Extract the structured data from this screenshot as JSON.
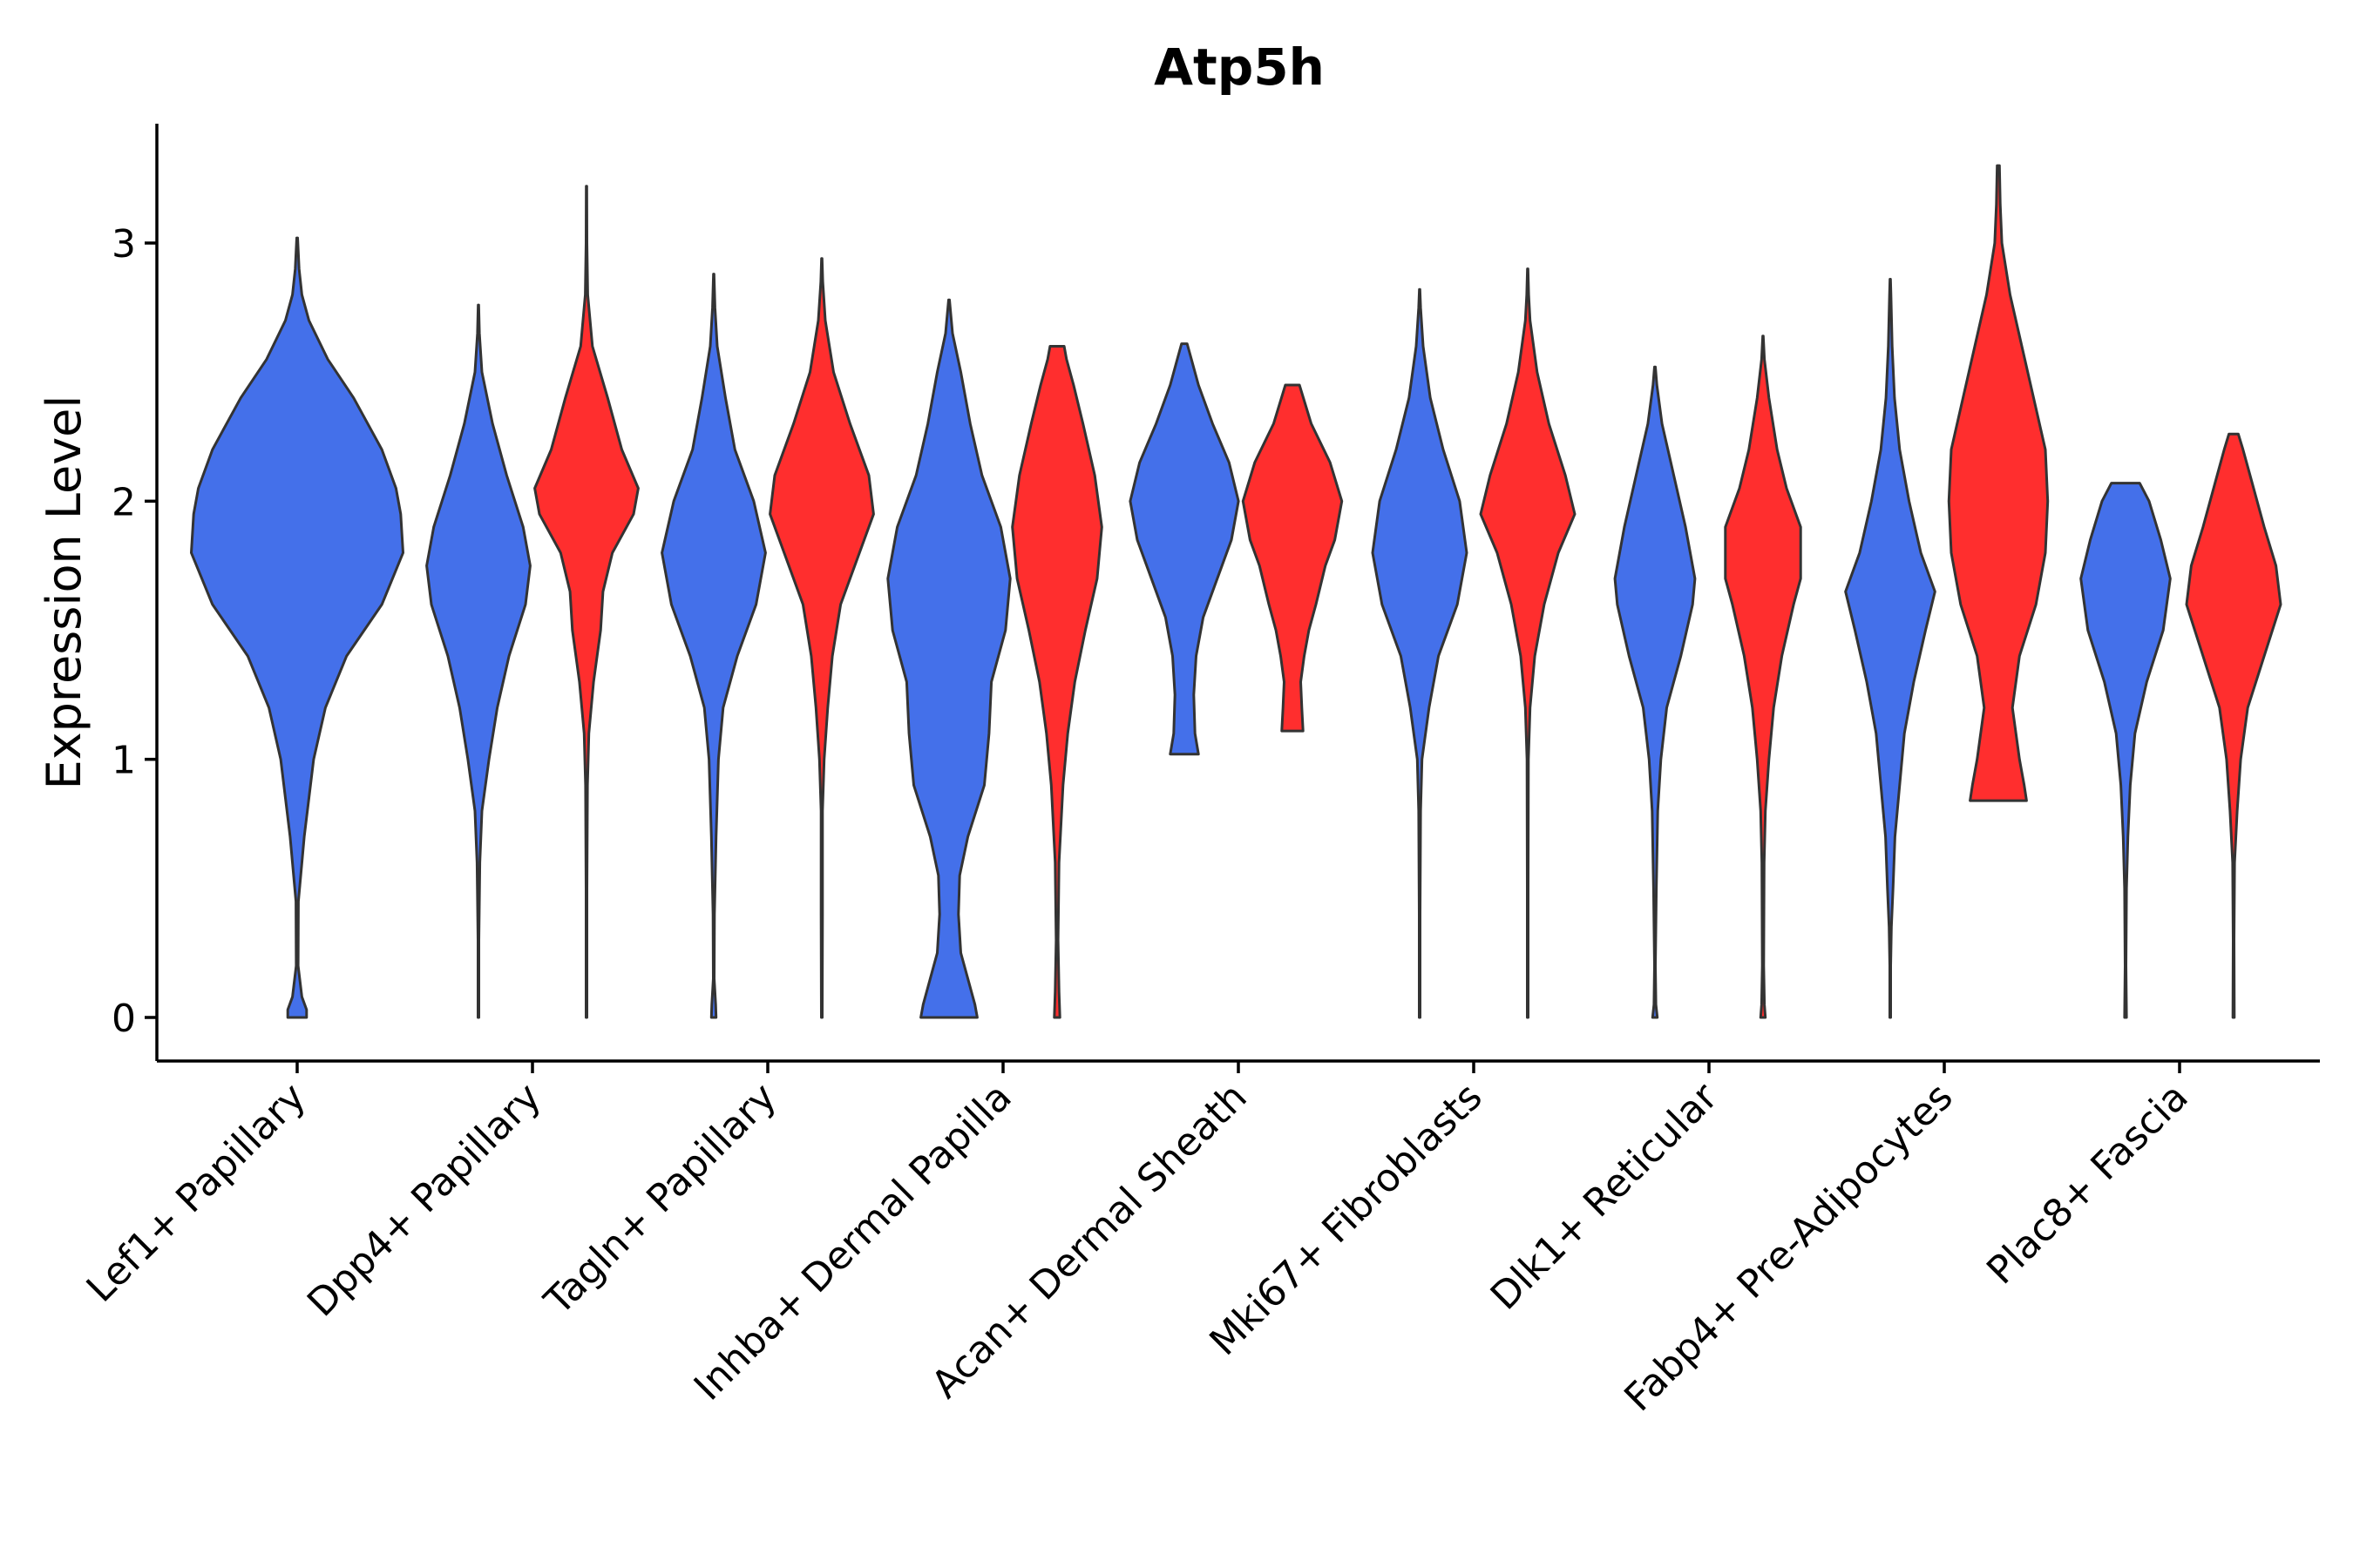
{
  "chart_data": {
    "type": "violin",
    "title": "Atp5h",
    "xlabel": "",
    "ylabel": "Expression Level",
    "ylim": [
      -0.17,
      3.45
    ],
    "yticks": [
      0,
      1,
      2,
      3
    ],
    "grid": false,
    "legend": "none",
    "colors": {
      "group_a": "#4470ea",
      "group_b": "#ff2e2e",
      "outline": "#333333"
    },
    "categories": [
      "Lef1+ Papillary",
      "Dpp4+ Papillary",
      "Tagln+ Papillary",
      "Inhba+ Dermal Papilla",
      "Acan+ Dermal Sheath",
      "Mki67+ Fibroblasts",
      "Dlk1+ Reticular",
      "Fabp4+ Pre-Adipocytes",
      "Plac8+ Fascia"
    ],
    "violins": [
      {
        "category": 0,
        "side": "center",
        "color": "group_a",
        "profile": [
          [
            0,
            0.04
          ],
          [
            0.03,
            0.04
          ],
          [
            0.08,
            0.02
          ],
          [
            0.2,
            0.004
          ],
          [
            0.45,
            0.005
          ],
          [
            0.55,
            0.015
          ],
          [
            0.7,
            0.03
          ],
          [
            0.85,
            0.05
          ],
          [
            1.0,
            0.07
          ],
          [
            1.2,
            0.12
          ],
          [
            1.4,
            0.21
          ],
          [
            1.6,
            0.36
          ],
          [
            1.8,
            0.45
          ],
          [
            1.95,
            0.44
          ],
          [
            2.05,
            0.42
          ],
          [
            2.2,
            0.36
          ],
          [
            2.4,
            0.24
          ],
          [
            2.55,
            0.13
          ],
          [
            2.7,
            0.05
          ],
          [
            2.8,
            0.02
          ],
          [
            2.9,
            0.008
          ],
          [
            3.02,
            0.002
          ]
        ]
      },
      {
        "category": 1,
        "side": "left",
        "color": "group_a",
        "profile": [
          [
            0,
            0.002
          ],
          [
            0.3,
            0.002
          ],
          [
            0.6,
            0.006
          ],
          [
            0.8,
            0.015
          ],
          [
            1.0,
            0.045
          ],
          [
            1.2,
            0.08
          ],
          [
            1.4,
            0.13
          ],
          [
            1.6,
            0.2
          ],
          [
            1.75,
            0.22
          ],
          [
            1.9,
            0.19
          ],
          [
            2.1,
            0.12
          ],
          [
            2.3,
            0.06
          ],
          [
            2.5,
            0.015
          ],
          [
            2.65,
            0.004
          ],
          [
            2.76,
            0.001
          ]
        ]
      },
      {
        "category": 1,
        "side": "right",
        "color": "group_b",
        "profile": [
          [
            0,
            0.002
          ],
          [
            0.5,
            0.002
          ],
          [
            0.9,
            0.004
          ],
          [
            1.1,
            0.01
          ],
          [
            1.3,
            0.03
          ],
          [
            1.5,
            0.06
          ],
          [
            1.65,
            0.07
          ],
          [
            1.8,
            0.11
          ],
          [
            1.95,
            0.2
          ],
          [
            2.05,
            0.22
          ],
          [
            2.2,
            0.15
          ],
          [
            2.4,
            0.09
          ],
          [
            2.6,
            0.025
          ],
          [
            2.8,
            0.005
          ],
          [
            3.0,
            0.002
          ],
          [
            3.22,
            0.001
          ]
        ]
      },
      {
        "category": 2,
        "side": "left",
        "color": "group_a",
        "profile": [
          [
            0,
            0.01
          ],
          [
            0.05,
            0.008
          ],
          [
            0.15,
            0.002
          ],
          [
            0.4,
            0.003
          ],
          [
            0.7,
            0.01
          ],
          [
            1.0,
            0.02
          ],
          [
            1.2,
            0.04
          ],
          [
            1.4,
            0.1
          ],
          [
            1.6,
            0.18
          ],
          [
            1.8,
            0.22
          ],
          [
            2.0,
            0.17
          ],
          [
            2.2,
            0.09
          ],
          [
            2.4,
            0.05
          ],
          [
            2.6,
            0.015
          ],
          [
            2.75,
            0.005
          ],
          [
            2.88,
            0.001
          ]
        ]
      },
      {
        "category": 2,
        "side": "right",
        "color": "group_b",
        "profile": [
          [
            0,
            0.002
          ],
          [
            0.4,
            0.003
          ],
          [
            0.8,
            0.003
          ],
          [
            1.0,
            0.01
          ],
          [
            1.2,
            0.025
          ],
          [
            1.4,
            0.045
          ],
          [
            1.6,
            0.08
          ],
          [
            1.8,
            0.16
          ],
          [
            1.95,
            0.22
          ],
          [
            2.1,
            0.2
          ],
          [
            2.3,
            0.12
          ],
          [
            2.5,
            0.05
          ],
          [
            2.7,
            0.015
          ],
          [
            2.85,
            0.004
          ],
          [
            2.94,
            0.001
          ]
        ]
      },
      {
        "category": 3,
        "side": "left",
        "color": "group_a",
        "profile": [
          [
            0,
            0.12
          ],
          [
            0.05,
            0.11
          ],
          [
            0.15,
            0.08
          ],
          [
            0.25,
            0.05
          ],
          [
            0.4,
            0.04
          ],
          [
            0.55,
            0.045
          ],
          [
            0.7,
            0.08
          ],
          [
            0.9,
            0.15
          ],
          [
            1.1,
            0.17
          ],
          [
            1.3,
            0.18
          ],
          [
            1.5,
            0.24
          ],
          [
            1.7,
            0.26
          ],
          [
            1.9,
            0.22
          ],
          [
            2.1,
            0.14
          ],
          [
            2.3,
            0.09
          ],
          [
            2.5,
            0.05
          ],
          [
            2.65,
            0.015
          ],
          [
            2.78,
            0.002
          ]
        ]
      },
      {
        "category": 3,
        "side": "right",
        "color": "group_b",
        "profile": [
          [
            0,
            0.012
          ],
          [
            0.1,
            0.008
          ],
          [
            0.3,
            0.004
          ],
          [
            0.6,
            0.008
          ],
          [
            0.9,
            0.025
          ],
          [
            1.1,
            0.045
          ],
          [
            1.3,
            0.075
          ],
          [
            1.5,
            0.12
          ],
          [
            1.7,
            0.17
          ],
          [
            1.9,
            0.19
          ],
          [
            2.1,
            0.16
          ],
          [
            2.3,
            0.11
          ],
          [
            2.45,
            0.07
          ],
          [
            2.55,
            0.04
          ],
          [
            2.6,
            0.03
          ]
        ]
      },
      {
        "category": 4,
        "side": "left",
        "color": "group_a",
        "profile": [
          [
            1.02,
            0.06
          ],
          [
            1.1,
            0.045
          ],
          [
            1.25,
            0.04
          ],
          [
            1.4,
            0.05
          ],
          [
            1.55,
            0.08
          ],
          [
            1.7,
            0.14
          ],
          [
            1.85,
            0.2
          ],
          [
            2.0,
            0.23
          ],
          [
            2.15,
            0.19
          ],
          [
            2.3,
            0.12
          ],
          [
            2.45,
            0.06
          ],
          [
            2.55,
            0.03
          ],
          [
            2.61,
            0.012
          ]
        ]
      },
      {
        "category": 4,
        "side": "right",
        "color": "group_b",
        "profile": [
          [
            1.11,
            0.045
          ],
          [
            1.2,
            0.04
          ],
          [
            1.3,
            0.035
          ],
          [
            1.4,
            0.05
          ],
          [
            1.5,
            0.07
          ],
          [
            1.6,
            0.1
          ],
          [
            1.75,
            0.14
          ],
          [
            1.85,
            0.18
          ],
          [
            2.0,
            0.21
          ],
          [
            2.15,
            0.16
          ],
          [
            2.3,
            0.08
          ],
          [
            2.42,
            0.04
          ],
          [
            2.45,
            0.03
          ]
        ]
      },
      {
        "category": 5,
        "side": "left",
        "color": "group_a",
        "profile": [
          [
            0,
            0.002
          ],
          [
            0.4,
            0.002
          ],
          [
            0.8,
            0.004
          ],
          [
            1.0,
            0.01
          ],
          [
            1.2,
            0.04
          ],
          [
            1.4,
            0.08
          ],
          [
            1.6,
            0.16
          ],
          [
            1.8,
            0.2
          ],
          [
            2.0,
            0.17
          ],
          [
            2.2,
            0.1
          ],
          [
            2.4,
            0.045
          ],
          [
            2.6,
            0.015
          ],
          [
            2.75,
            0.004
          ],
          [
            2.82,
            0.001
          ]
        ]
      },
      {
        "category": 5,
        "side": "right",
        "color": "group_b",
        "profile": [
          [
            0,
            0.002
          ],
          [
            0.5,
            0.002
          ],
          [
            1.0,
            0.003
          ],
          [
            1.2,
            0.01
          ],
          [
            1.4,
            0.03
          ],
          [
            1.6,
            0.07
          ],
          [
            1.8,
            0.13
          ],
          [
            1.95,
            0.2
          ],
          [
            2.1,
            0.16
          ],
          [
            2.3,
            0.09
          ],
          [
            2.5,
            0.04
          ],
          [
            2.7,
            0.01
          ],
          [
            2.8,
            0.004
          ],
          [
            2.9,
            0.001
          ]
        ]
      },
      {
        "category": 6,
        "side": "left",
        "color": "group_a",
        "profile": [
          [
            0,
            0.01
          ],
          [
            0.05,
            0.004
          ],
          [
            0.2,
            0.002
          ],
          [
            0.5,
            0.006
          ],
          [
            0.8,
            0.012
          ],
          [
            1.0,
            0.025
          ],
          [
            1.2,
            0.05
          ],
          [
            1.4,
            0.11
          ],
          [
            1.6,
            0.16
          ],
          [
            1.7,
            0.17
          ],
          [
            1.9,
            0.13
          ],
          [
            2.1,
            0.08
          ],
          [
            2.3,
            0.03
          ],
          [
            2.45,
            0.008
          ],
          [
            2.52,
            0.002
          ]
        ]
      },
      {
        "category": 6,
        "side": "right",
        "color": "group_b",
        "profile": [
          [
            0,
            0.01
          ],
          [
            0.05,
            0.006
          ],
          [
            0.2,
            0.003
          ],
          [
            0.6,
            0.005
          ],
          [
            0.8,
            0.01
          ],
          [
            1.0,
            0.025
          ],
          [
            1.2,
            0.045
          ],
          [
            1.4,
            0.08
          ],
          [
            1.6,
            0.13
          ],
          [
            1.7,
            0.16
          ],
          [
            1.9,
            0.16
          ],
          [
            2.05,
            0.1
          ],
          [
            2.2,
            0.06
          ],
          [
            2.4,
            0.025
          ],
          [
            2.55,
            0.006
          ],
          [
            2.64,
            0.001
          ]
        ]
      },
      {
        "category": 7,
        "side": "left",
        "color": "group_a",
        "profile": [
          [
            0,
            0.002
          ],
          [
            0.2,
            0.002
          ],
          [
            0.35,
            0.005
          ],
          [
            0.5,
            0.012
          ],
          [
            0.7,
            0.02
          ],
          [
            0.9,
            0.04
          ],
          [
            1.1,
            0.06
          ],
          [
            1.3,
            0.1
          ],
          [
            1.5,
            0.15
          ],
          [
            1.65,
            0.19
          ],
          [
            1.8,
            0.13
          ],
          [
            2.0,
            0.08
          ],
          [
            2.2,
            0.04
          ],
          [
            2.4,
            0.018
          ],
          [
            2.6,
            0.008
          ],
          [
            2.8,
            0.003
          ],
          [
            2.86,
            0.001
          ]
        ]
      },
      {
        "category": 7,
        "side": "right",
        "color": "group_b",
        "profile": [
          [
            0.84,
            0.12
          ],
          [
            0.9,
            0.11
          ],
          [
            1.0,
            0.09
          ],
          [
            1.2,
            0.06
          ],
          [
            1.4,
            0.09
          ],
          [
            1.6,
            0.16
          ],
          [
            1.8,
            0.2
          ],
          [
            2.0,
            0.21
          ],
          [
            2.2,
            0.2
          ],
          [
            2.4,
            0.15
          ],
          [
            2.6,
            0.1
          ],
          [
            2.8,
            0.05
          ],
          [
            3.0,
            0.015
          ],
          [
            3.15,
            0.008
          ],
          [
            3.3,
            0.005
          ]
        ]
      },
      {
        "category": 8,
        "side": "left",
        "color": "group_a",
        "profile": [
          [
            0,
            0.004
          ],
          [
            0.2,
            0.002
          ],
          [
            0.5,
            0.004
          ],
          [
            0.7,
            0.01
          ],
          [
            0.9,
            0.02
          ],
          [
            1.1,
            0.04
          ],
          [
            1.3,
            0.09
          ],
          [
            1.5,
            0.16
          ],
          [
            1.7,
            0.19
          ],
          [
            1.85,
            0.15
          ],
          [
            2.0,
            0.1
          ],
          [
            2.07,
            0.06
          ]
        ]
      },
      {
        "category": 8,
        "side": "right",
        "color": "group_b",
        "profile": [
          [
            0,
            0.003
          ],
          [
            0.3,
            0.002
          ],
          [
            0.6,
            0.004
          ],
          [
            0.8,
            0.015
          ],
          [
            1.0,
            0.03
          ],
          [
            1.2,
            0.06
          ],
          [
            1.4,
            0.13
          ],
          [
            1.6,
            0.2
          ],
          [
            1.75,
            0.18
          ],
          [
            1.9,
            0.13
          ],
          [
            2.1,
            0.07
          ],
          [
            2.2,
            0.04
          ],
          [
            2.26,
            0.02
          ]
        ]
      }
    ]
  }
}
